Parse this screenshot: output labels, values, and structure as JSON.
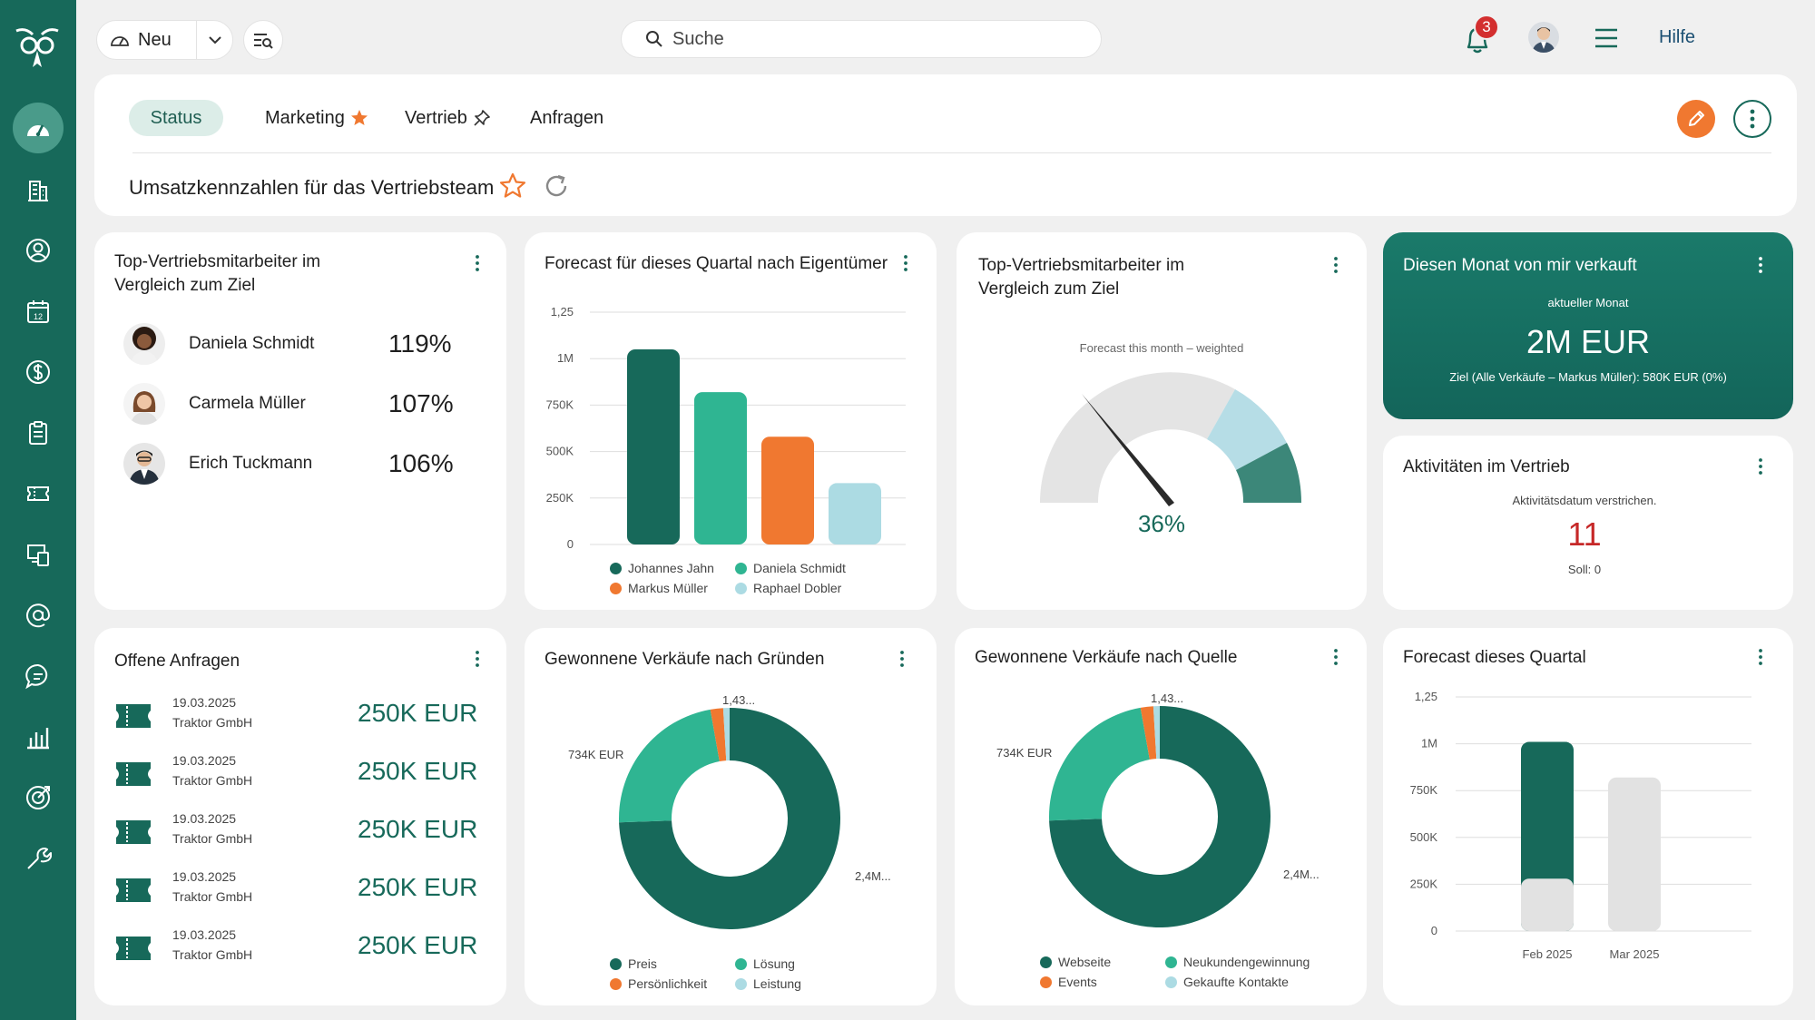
{
  "colors": {
    "brand": "#17695a",
    "accent": "#f07830",
    "teal": "#2fb592",
    "light_blue": "#acdbe3",
    "grey": "#e2e2e2",
    "danger": "#c62828"
  },
  "sidebar": {
    "items": [
      {
        "icon": "speedometer-icon",
        "active": true
      },
      {
        "icon": "building-icon"
      },
      {
        "icon": "contact-icon"
      },
      {
        "icon": "calendar-icon",
        "label": "12"
      },
      {
        "icon": "dollar-icon"
      },
      {
        "icon": "clipboard-icon"
      },
      {
        "icon": "ticket-icon"
      },
      {
        "icon": "devices-icon"
      },
      {
        "icon": "at-sign-icon"
      },
      {
        "icon": "chat-icon"
      },
      {
        "icon": "bar-chart-icon"
      },
      {
        "icon": "target-icon"
      },
      {
        "icon": "wrench-icon"
      }
    ]
  },
  "topbar": {
    "new_label": "Neu",
    "search_placeholder": "Suche",
    "notifications_count": "3",
    "help_label": "Hilfe"
  },
  "tabs": [
    {
      "label": "Status",
      "active": true
    },
    {
      "label": "Marketing",
      "icon": "star-filled-icon"
    },
    {
      "label": "Vertrieb",
      "icon": "pin-icon"
    },
    {
      "label": "Anfragen"
    }
  ],
  "panel": {
    "title": "Umsatzkennzahlen für das Vertriebsteam"
  },
  "top_sales": {
    "title_line1": "Top-Vertriebsmitarbeiter im",
    "title_line2": "Vergleich zum Ziel",
    "people": [
      {
        "name": "Daniela Schmidt",
        "percent": "119%"
      },
      {
        "name": "Carmela Müller",
        "percent": "107%"
      },
      {
        "name": "Erich Tuckmann",
        "percent": "106%"
      }
    ]
  },
  "forecast_owner": {
    "title": "Forecast für dieses Quartal nach Eigentümer",
    "legend": [
      "Johannes Jahn",
      "Daniela Schmidt",
      "Markus Müller",
      "Raphael Dobler"
    ]
  },
  "gauge": {
    "title_line1": "Top-Vertriebsmitarbeiter im",
    "title_line2": "Vergleich zum Ziel",
    "subtitle": "Forecast this month – weighted",
    "value": "36%"
  },
  "sold_month": {
    "title": "Diesen Monat von mir verkauft",
    "sub": "aktueller Monat",
    "value": "2M EUR",
    "goal": "Ziel (Alle Verkäufe – Markus Müller): 580K EUR (0%)"
  },
  "activities": {
    "title": "Aktivitäten im Vertrieb",
    "sub": "Aktivitätsdatum verstrichen.",
    "value": "11",
    "target": "Soll: 0"
  },
  "inquiries": {
    "title": "Offene Anfragen",
    "items": [
      {
        "date": "19.03.2025",
        "company": "Traktor GmbH",
        "amount": "250K EUR"
      },
      {
        "date": "19.03.2025",
        "company": "Traktor GmbH",
        "amount": "250K EUR"
      },
      {
        "date": "19.03.2025",
        "company": "Traktor GmbH",
        "amount": "250K EUR"
      },
      {
        "date": "19.03.2025",
        "company": "Traktor GmbH",
        "amount": "250K EUR"
      },
      {
        "date": "19.03.2025",
        "company": "Traktor GmbH",
        "amount": "250K EUR"
      }
    ]
  },
  "won_reasons": {
    "title": "Gewonnene Verkäufe nach Gründen",
    "label_top": "1,43...",
    "label_left": "734K EUR",
    "label_right": "2,4M...",
    "legend": [
      "Preis",
      "Lösung",
      "Persönlichkeit",
      "Leistung"
    ]
  },
  "won_source": {
    "title": "Gewonnene Verkäufe nach Quelle",
    "label_top": "1,43...",
    "label_left": "734K EUR",
    "label_right": "2,4M...",
    "legend": [
      "Webseite",
      "Neukundengewinnung",
      "Events",
      "Gekaufte Kontakte"
    ]
  },
  "forecast_quarter": {
    "title": "Forecast dieses Quartal"
  },
  "chart_data": [
    {
      "type": "bar",
      "title": "Forecast für dieses Quartal nach Eigentümer",
      "categories": [
        "Johannes Jahn",
        "Daniela Schmidt",
        "Markus Müller",
        "Raphael Dobler"
      ],
      "values": [
        1050000,
        820000,
        580000,
        330000
      ],
      "colors": [
        "#17695a",
        "#2fb592",
        "#f07830",
        "#acdbe3"
      ],
      "yticks": [
        "0",
        "250K",
        "500K",
        "750K",
        "1M",
        "1,25"
      ],
      "ylim": [
        0,
        1250000
      ]
    },
    {
      "type": "pie",
      "title": "Gewonnene Verkäufe nach Gründen",
      "labels": [
        "Preis",
        "Lösung",
        "Persönlichkeit",
        "Leistung"
      ],
      "values": [
        2400000,
        734000,
        60000,
        30000
      ],
      "colors": [
        "#17695a",
        "#2fb592",
        "#f07830",
        "#acdbe3"
      ]
    },
    {
      "type": "pie",
      "title": "Gewonnene Verkäufe nach Quelle",
      "labels": [
        "Webseite",
        "Neukundengewinnung",
        "Events",
        "Gekaufte Kontakte"
      ],
      "values": [
        2400000,
        734000,
        60000,
        30000
      ],
      "colors": [
        "#17695a",
        "#2fb592",
        "#f07830",
        "#acdbe3"
      ]
    },
    {
      "type": "bar",
      "title": "Forecast dieses Quartal",
      "categories": [
        "Feb 2025",
        "Mar 2025"
      ],
      "series": [
        {
          "values": [
            280000,
            0
          ],
          "color": "#e2e2e2"
        },
        {
          "values": [
            730000,
            820000
          ],
          "color_by_category": [
            "#17695a",
            "#e2e2e2"
          ]
        }
      ],
      "yticks": [
        "0",
        "250K",
        "500K",
        "750K",
        "1M",
        "1,25"
      ],
      "ylim": [
        0,
        1250000
      ]
    }
  ]
}
